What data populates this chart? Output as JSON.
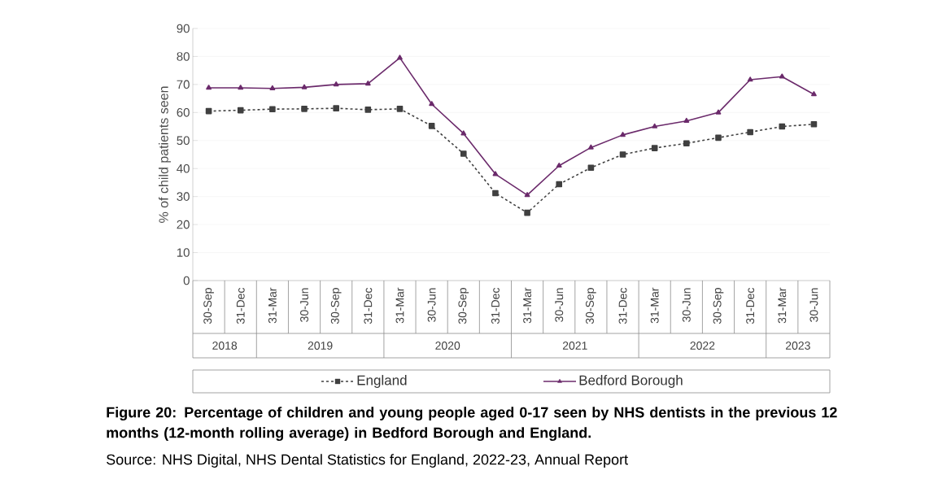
{
  "chart_data": {
    "type": "line",
    "title": "**Figure 20: Percentage of children and young people aged 0-17 seen by NHS dentists in the previous 12 months (12-month rolling average) in Bedford Borough and England.**",
    "annotations": [
      "2018",
      "2019",
      "2020",
      "2021",
      "2022",
      "2023",
      "Source: NHS Digital, NHS Dental Statistics for England, 2022-23, Annual Report"
    ],
    "categories": [
      "30-Sep",
      "31-Dec",
      "31-Mar",
      "30-Jun",
      "30-Sep",
      "31-Dec",
      "31-Mar",
      "30-Jun",
      "30-Sep",
      "31-Dec",
      "31-Mar",
      "30-Jun",
      "30-Sep",
      "31-Dec",
      "31-Mar",
      "30-Jun",
      "30-Sep",
      "31-Dec",
      "31-Mar",
      "30-Jun"
    ],
    "ylabel": "% of child patients seen",
    "ylim": [
      0,
      90
    ],
    "yticks": [
      0,
      10,
      20,
      30,
      40,
      50,
      60,
      70,
      80,
      90
    ],
    "grid": "y",
    "legend": "bottom",
    "series": [
      {
        "name": "England",
        "color": "#404040",
        "marker": "square",
        "line_style": "dashed",
        "values": [
          60.5,
          60.8,
          61.2,
          61.3,
          61.5,
          61.0,
          61.3,
          55.2,
          45.3,
          31.2,
          24.2,
          34.4,
          40.3,
          45.0,
          47.3,
          49.0,
          51.0,
          53.0,
          55.0,
          55.8
        ]
      },
      {
        "name": "Bedford Borough",
        "color": "#6b2a6b",
        "marker": "triangle",
        "line_style": "solid",
        "values": [
          68.8,
          68.8,
          68.6,
          69.0,
          70.0,
          70.3,
          79.5,
          63.0,
          52.5,
          38.0,
          30.5,
          41.0,
          47.5,
          52.0,
          55.0,
          57.0,
          60.0,
          71.7,
          72.8,
          66.5
        ]
      }
    ]
  }
}
